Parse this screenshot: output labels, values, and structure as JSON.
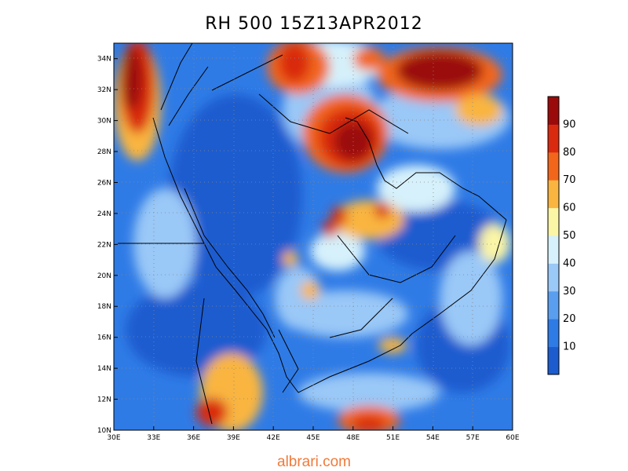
{
  "title": "RH 500 15Z13APR2012",
  "watermark": "albrari.com",
  "map": {
    "lon_range": [
      30,
      60
    ],
    "lat_range": [
      10,
      35
    ],
    "x_ticks": [
      "30E",
      "33E",
      "36E",
      "39E",
      "42E",
      "45E",
      "48E",
      "51E",
      "54E",
      "57E",
      "60E"
    ],
    "y_ticks": [
      "10N",
      "12N",
      "14N",
      "16N",
      "18N",
      "20N",
      "22N",
      "24N",
      "26N",
      "28N",
      "30N",
      "32N",
      "34N"
    ],
    "grid": "dotted",
    "colorbar": {
      "labels": [
        "10",
        "20",
        "30",
        "40",
        "50",
        "60",
        "70",
        "80",
        "90"
      ],
      "colors": [
        "#1c5ccf",
        "#2f7be6",
        "#5a9ef0",
        "#9ac8f7",
        "#d6f1fb",
        "#fbf5a6",
        "#f9b540",
        "#f2661c",
        "#d92a10",
        "#9b0a0a"
      ]
    }
  }
}
